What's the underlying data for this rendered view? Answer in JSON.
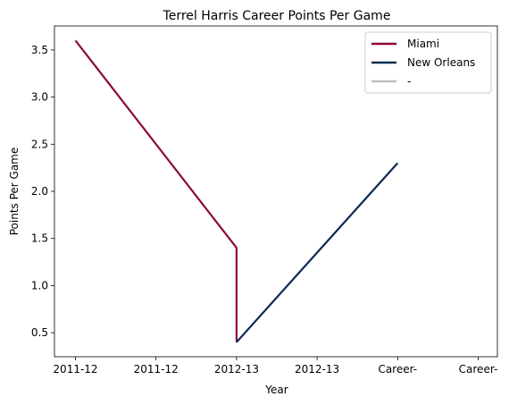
{
  "chart_data": {
    "type": "line",
    "title": "Terrel Harris Career Points Per Game",
    "xlabel": "Year",
    "ylabel": "Points Per Game",
    "categories": [
      "2011-12",
      "2011-12",
      "2012-13",
      "2012-13",
      "Career-",
      "Career-"
    ],
    "yticks": [
      0.5,
      1.0,
      1.5,
      2.0,
      2.5,
      3.0,
      3.5
    ],
    "ytick_labels": [
      "0.5",
      "1.0",
      "1.5",
      "2.0",
      "2.5",
      "3.0",
      "3.5"
    ],
    "ylim": [
      0.245,
      3.755
    ],
    "grid": false,
    "legend_position": "top-right",
    "series": [
      {
        "name": "Miami",
        "color": "#8b0a3a",
        "points": [
          {
            "x": 0,
            "y": 3.6
          },
          {
            "x": 2.0,
            "y": 1.4
          },
          {
            "x": 2.0,
            "y": 0.4
          }
        ]
      },
      {
        "name": "New Orleans",
        "color": "#0c2a52",
        "points": [
          {
            "x": 2.0,
            "y": 0.4
          },
          {
            "x": 4.0,
            "y": 2.3
          }
        ]
      },
      {
        "name": "-",
        "color": "#c0c0c0",
        "points": []
      }
    ]
  }
}
